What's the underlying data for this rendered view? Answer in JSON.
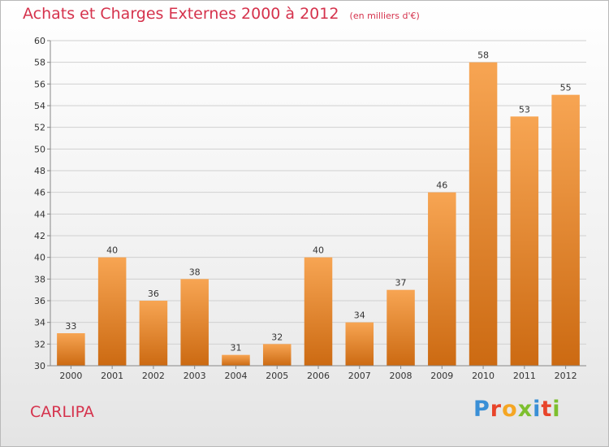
{
  "header": {
    "title": "Achats et Charges Externes 2000 à 2012",
    "unit": "(en milliers d'€)"
  },
  "footer": {
    "place": "CARLIPA",
    "brand": [
      "P",
      "r",
      "o",
      "x",
      "i",
      "t",
      "i"
    ],
    "brand_colors": [
      "#3a8fd6",
      "#e8442a",
      "#f5a623",
      "#7dbf2e",
      "#3a8fd6",
      "#e8442a",
      "#7dbf2e"
    ]
  },
  "chart_data": {
    "type": "bar",
    "title": "Achats et Charges Externes 2000 à 2012",
    "categories": [
      "2000",
      "2001",
      "2002",
      "2003",
      "2004",
      "2005",
      "2006",
      "2007",
      "2008",
      "2009",
      "2010",
      "2011",
      "2012"
    ],
    "values": [
      33,
      40,
      36,
      38,
      31,
      32,
      40,
      34,
      37,
      46,
      58,
      53,
      55
    ],
    "ylim": [
      30,
      60
    ],
    "yticks": [
      30,
      32,
      34,
      36,
      38,
      40,
      42,
      44,
      46,
      48,
      50,
      52,
      54,
      56,
      58,
      60
    ],
    "grid": true,
    "bar_color_top": "#f7a553",
    "bar_color_bottom": "#cc6a12"
  }
}
